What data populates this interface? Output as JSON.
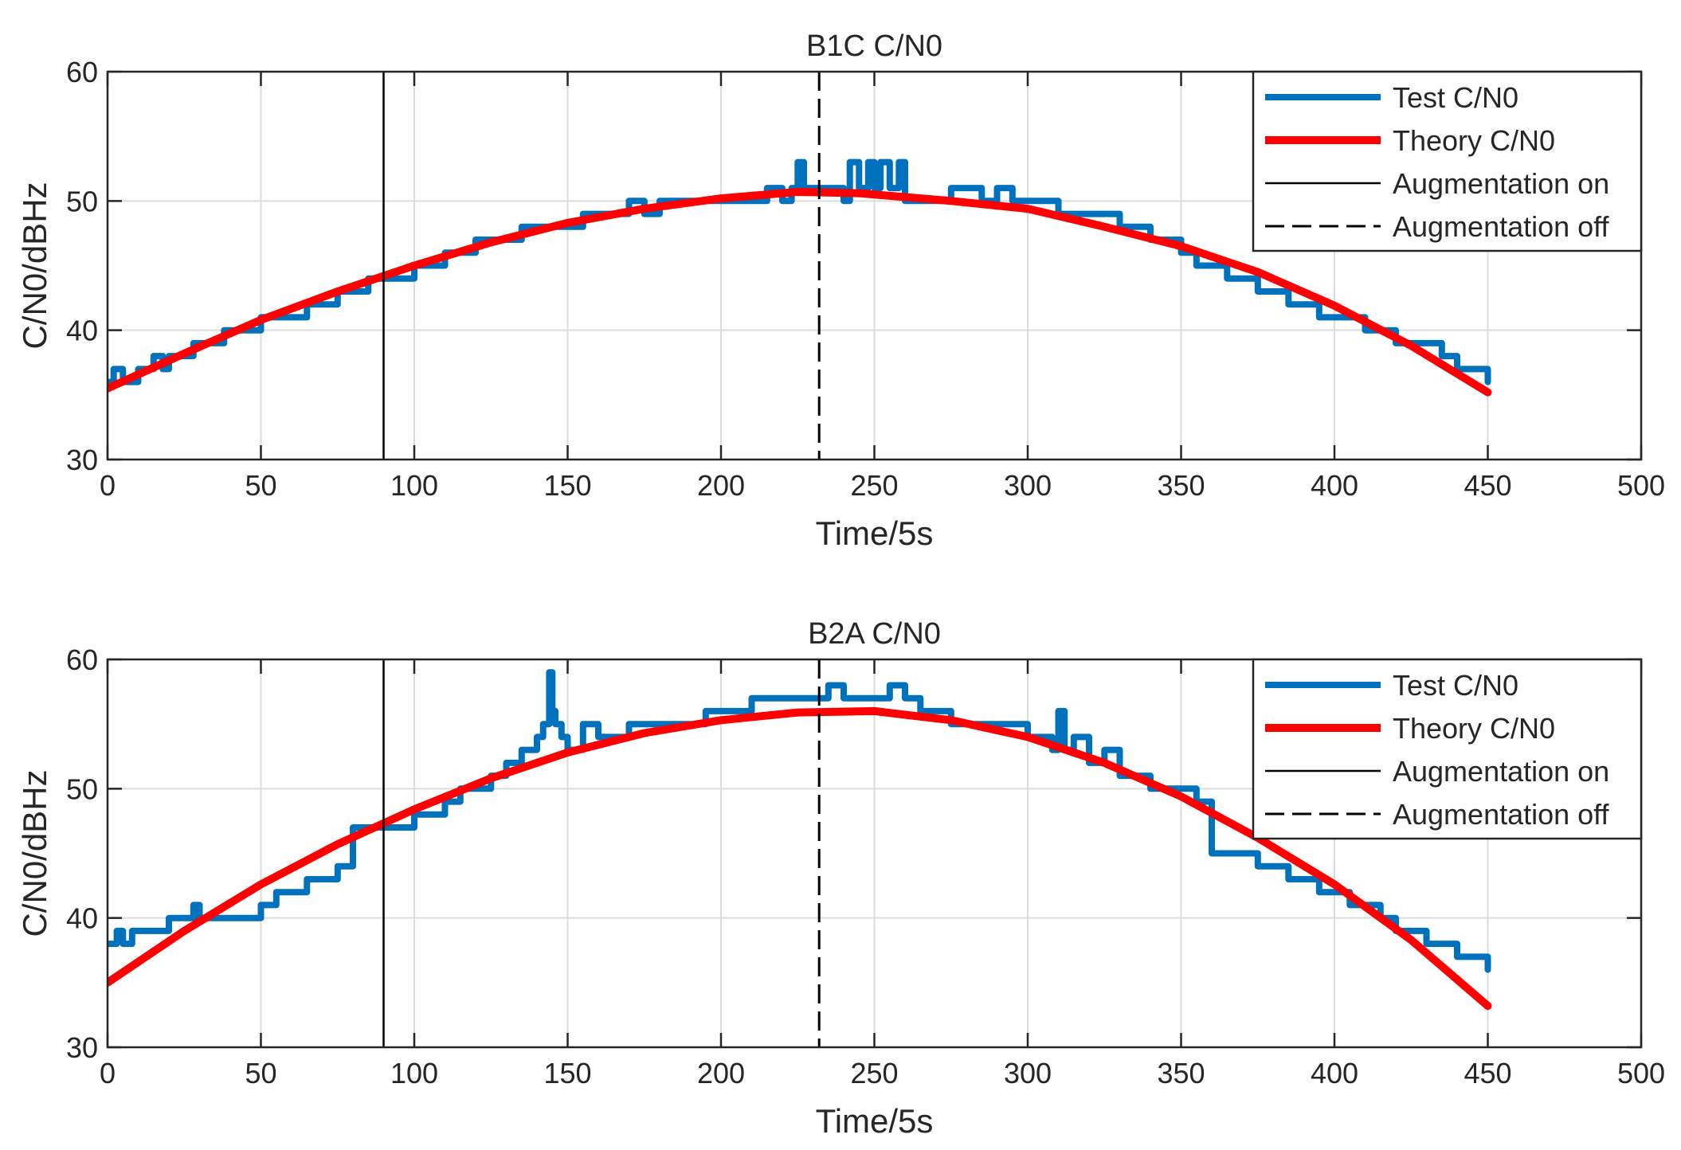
{
  "chart_data": [
    {
      "type": "line",
      "title": "B1C C/N0",
      "xlabel": "Time/5s",
      "ylabel": "C/N0/dBHz",
      "xlim": [
        0,
        500
      ],
      "ylim": [
        30,
        60
      ],
      "xticks": [
        0,
        50,
        100,
        150,
        200,
        250,
        300,
        350,
        400,
        450,
        500
      ],
      "yticks": [
        30,
        40,
        50,
        60
      ],
      "grid": true,
      "legend_position": "top-right",
      "legend": [
        "Test C/N0",
        "Theory C/N0",
        "Augmentation on",
        "Augmentation off"
      ],
      "augmentation_on_x": 90,
      "augmentation_off_x": 232,
      "series": [
        {
          "name": "Test C/N0",
          "color": "#0072BD",
          "x": [
            0,
            2,
            5,
            10,
            15,
            18,
            20,
            25,
            28,
            35,
            38,
            40,
            45,
            50,
            55,
            60,
            65,
            70,
            75,
            80,
            85,
            90,
            95,
            100,
            105,
            110,
            115,
            120,
            125,
            130,
            135,
            140,
            145,
            150,
            155,
            160,
            165,
            170,
            175,
            180,
            185,
            190,
            195,
            200,
            205,
            210,
            215,
            220,
            223,
            225,
            227,
            230,
            235,
            240,
            242,
            245,
            248,
            250,
            252,
            255,
            258,
            260,
            265,
            270,
            275,
            280,
            285,
            290,
            295,
            300,
            305,
            310,
            315,
            320,
            325,
            330,
            335,
            340,
            345,
            350,
            355,
            360,
            365,
            370,
            375,
            380,
            385,
            390,
            395,
            400,
            405,
            410,
            415,
            420,
            425,
            430,
            435,
            440,
            445,
            450
          ],
          "y": [
            36,
            37,
            36,
            37,
            38,
            37,
            38,
            38,
            39,
            39,
            40,
            40,
            40,
            41,
            41,
            41,
            42,
            42,
            43,
            43,
            44,
            44,
            44,
            45,
            45,
            46,
            46,
            47,
            47,
            47,
            48,
            48,
            48,
            48,
            49,
            49,
            49,
            50,
            49,
            50,
            50,
            50,
            50,
            50,
            50,
            50,
            51,
            50,
            51,
            53,
            51,
            51,
            51,
            50,
            53,
            51,
            53,
            51,
            53,
            51,
            53,
            50,
            50,
            50,
            51,
            51,
            50,
            51,
            50,
            50,
            50,
            49,
            49,
            49,
            49,
            48,
            48,
            47,
            47,
            46,
            45,
            45,
            44,
            44,
            43,
            43,
            42,
            42,
            41,
            41,
            41,
            40,
            40,
            39,
            39,
            39,
            38,
            37,
            37,
            36
          ]
        },
        {
          "name": "Theory C/N0",
          "color": "#FF0000",
          "x": [
            0,
            25,
            50,
            75,
            100,
            125,
            150,
            175,
            200,
            225,
            245,
            275,
            300,
            325,
            350,
            375,
            400,
            425,
            450
          ],
          "y": [
            35.5,
            38.2,
            40.8,
            43.0,
            45.0,
            46.8,
            48.3,
            49.4,
            50.2,
            50.7,
            50.6,
            50.0,
            49.4,
            48.0,
            46.5,
            44.5,
            41.9,
            38.8,
            35.2
          ]
        }
      ]
    },
    {
      "type": "line",
      "title": "B2A C/N0",
      "xlabel": "Time/5s",
      "ylabel": "C/N0/dBHz",
      "xlim": [
        0,
        500
      ],
      "ylim": [
        30,
        60
      ],
      "xticks": [
        0,
        50,
        100,
        150,
        200,
        250,
        300,
        350,
        400,
        450,
        500
      ],
      "yticks": [
        30,
        40,
        50,
        60
      ],
      "grid": true,
      "legend_position": "top-right",
      "legend": [
        "Test C/N0",
        "Theory C/N0",
        "Augmentation on",
        "Augmentation off"
      ],
      "augmentation_on_x": 90,
      "augmentation_off_x": 232,
      "series": [
        {
          "name": "Test C/N0",
          "color": "#0072BD",
          "x": [
            0,
            3,
            5,
            8,
            10,
            15,
            20,
            25,
            28,
            30,
            35,
            40,
            45,
            50,
            55,
            60,
            65,
            70,
            75,
            78,
            80,
            85,
            90,
            95,
            100,
            105,
            110,
            115,
            120,
            125,
            130,
            135,
            140,
            142,
            144,
            145,
            146,
            148,
            150,
            155,
            160,
            165,
            170,
            175,
            180,
            185,
            190,
            195,
            200,
            205,
            210,
            215,
            220,
            225,
            230,
            235,
            240,
            245,
            250,
            255,
            260,
            265,
            270,
            275,
            280,
            285,
            290,
            295,
            300,
            305,
            308,
            310,
            312,
            315,
            320,
            325,
            330,
            335,
            340,
            345,
            350,
            355,
            358,
            360,
            365,
            370,
            375,
            380,
            385,
            390,
            395,
            400,
            405,
            410,
            415,
            420,
            425,
            430,
            435,
            440,
            445,
            450
          ],
          "y": [
            38,
            39,
            38,
            39,
            39,
            39,
            40,
            40,
            41,
            40,
            40,
            40,
            40,
            41,
            42,
            42,
            43,
            43,
            44,
            44,
            47,
            47,
            47,
            47,
            48,
            48,
            49,
            50,
            50,
            51,
            52,
            53,
            54,
            55,
            59,
            56,
            55,
            54,
            53,
            55,
            54,
            54,
            55,
            55,
            55,
            55,
            55,
            56,
            56,
            56,
            57,
            57,
            57,
            57,
            57,
            58,
            57,
            57,
            57,
            58,
            57,
            56,
            56,
            55,
            55,
            55,
            55,
            55,
            54,
            54,
            53,
            56,
            53,
            54,
            52,
            53,
            51,
            51,
            50,
            50,
            50,
            49,
            49,
            45,
            45,
            45,
            44,
            44,
            43,
            43,
            42,
            42,
            41,
            41,
            40,
            39,
            39,
            38,
            38,
            37,
            37,
            36
          ]
        },
        {
          "name": "Theory C/N0",
          "color": "#FF0000",
          "x": [
            0,
            25,
            50,
            75,
            100,
            125,
            150,
            175,
            200,
            225,
            250,
            275,
            300,
            325,
            350,
            375,
            400,
            425,
            450
          ],
          "y": [
            35.0,
            39.0,
            42.6,
            45.7,
            48.4,
            50.8,
            52.8,
            54.3,
            55.3,
            55.9,
            56.0,
            55.3,
            54.0,
            52.0,
            49.4,
            46.2,
            42.6,
            38.3,
            33.2
          ]
        }
      ]
    }
  ]
}
